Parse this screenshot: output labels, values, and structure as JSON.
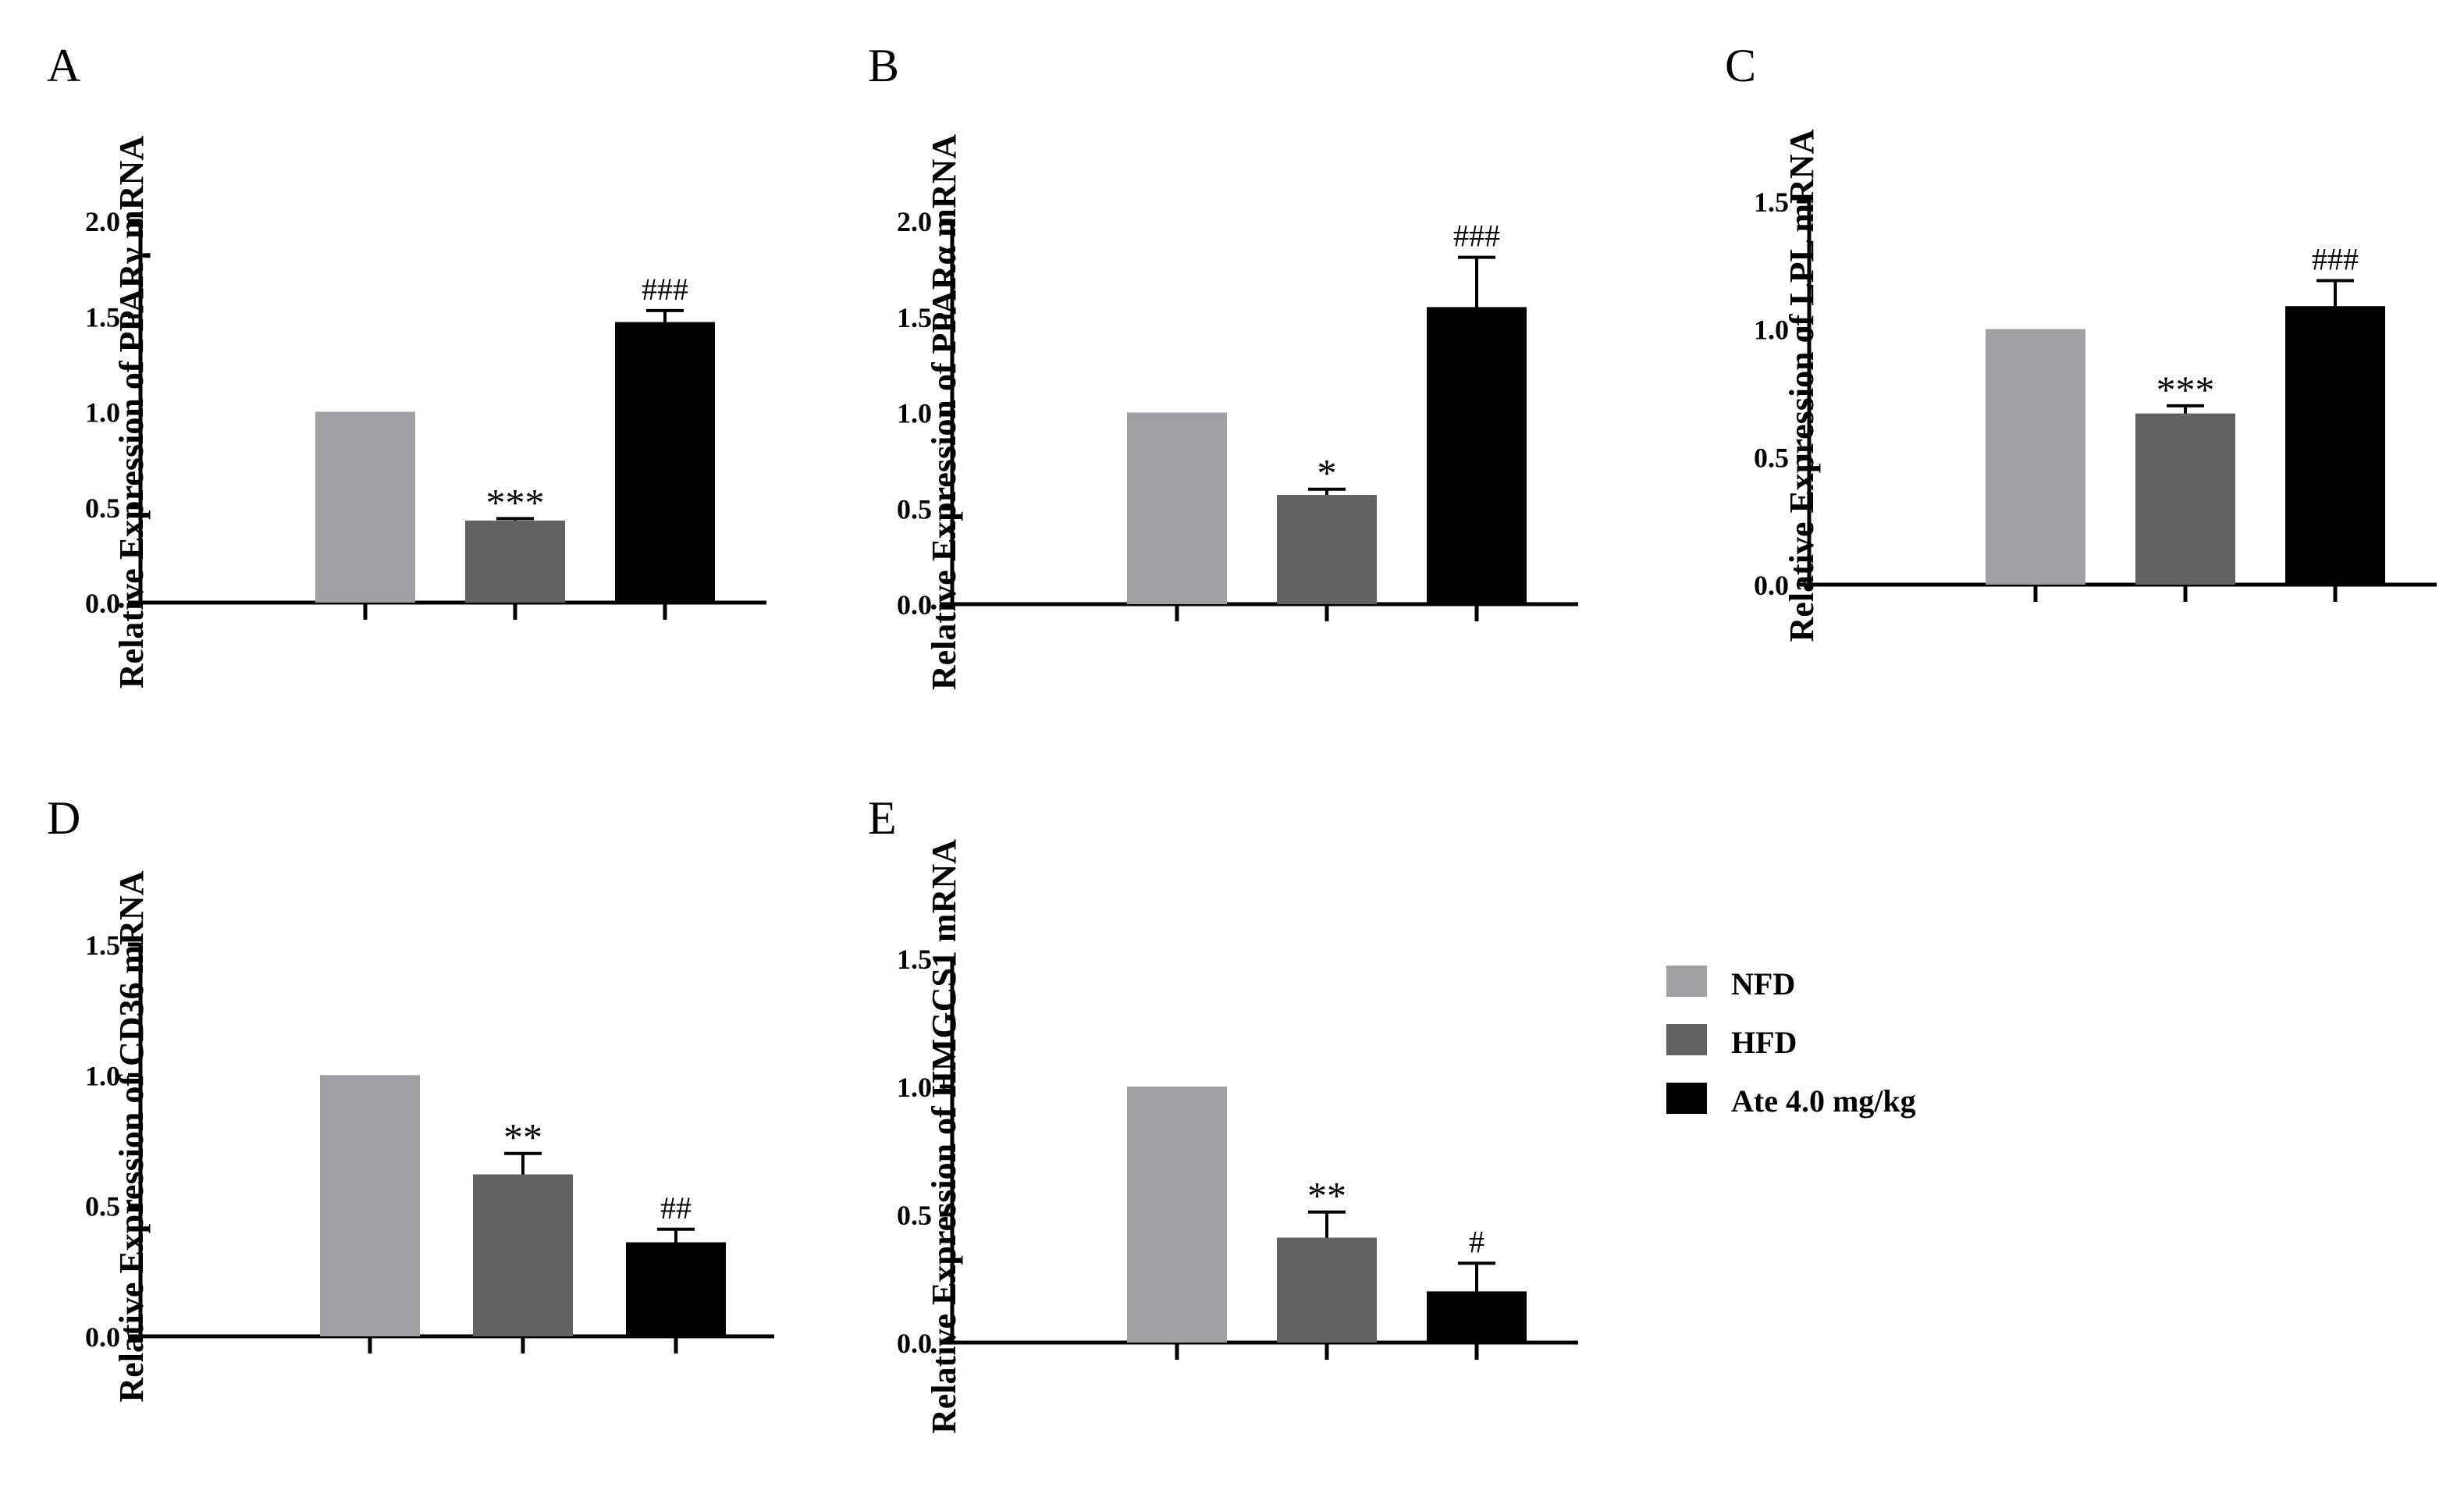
{
  "series_colors": {
    "NFD": "#a09fa3",
    "HFD": "#626262",
    "Ate 4.0 mg/kg": "#000000"
  },
  "legend": {
    "items": [
      "NFD",
      "HFD",
      "Ate 4.0 mg/kg"
    ]
  },
  "chart_data": [
    {
      "panel": "A",
      "type": "bar",
      "ylabel": "Relative Expression of PPARγ mRNA",
      "categories": [
        "NFD",
        "HFD",
        "Ate 4.0 mg/kg"
      ],
      "values": [
        1.0,
        0.43,
        1.47
      ],
      "errors": [
        0,
        0.01,
        0.06
      ],
      "annotations": [
        "",
        "***",
        "###"
      ],
      "ylim": [
        0,
        2.0
      ],
      "yticks": [
        "0.0",
        "0.5",
        "1.0",
        "1.5",
        "2.0"
      ]
    },
    {
      "panel": "B",
      "type": "bar",
      "ylabel": "Relative Expression of PPARα mRNA",
      "categories": [
        "NFD",
        "HFD",
        "Ate 4.0 mg/kg"
      ],
      "values": [
        1.0,
        0.57,
        1.55
      ],
      "errors": [
        0,
        0.03,
        0.26
      ],
      "annotations": [
        "",
        "*",
        "###"
      ],
      "ylim": [
        0,
        2.0
      ],
      "yticks": [
        "0.0",
        "0.5",
        "1.0",
        "1.5",
        "2.0"
      ]
    },
    {
      "panel": "C",
      "type": "bar",
      "ylabel": "Relative Expression of LPL mRNA",
      "categories": [
        "NFD",
        "HFD",
        "Ate 4.0 mg/kg"
      ],
      "values": [
        1.0,
        0.67,
        1.09
      ],
      "errors": [
        0,
        0.03,
        0.1
      ],
      "annotations": [
        "",
        "***",
        "###"
      ],
      "ylim": [
        0,
        1.5
      ],
      "yticks": [
        "0.0",
        "0.5",
        "1.0",
        "1.5"
      ]
    },
    {
      "panel": "D",
      "type": "bar",
      "ylabel": "Relative Expression of CD36 mRNA",
      "categories": [
        "NFD",
        "HFD",
        "Ate 4.0 mg/kg"
      ],
      "values": [
        1.0,
        0.62,
        0.36
      ],
      "errors": [
        0,
        0.08,
        0.05
      ],
      "annotations": [
        "",
        "**",
        "##"
      ],
      "ylim": [
        0,
        1.5
      ],
      "yticks": [
        "0.0",
        "0.5",
        "1.0",
        "1.5"
      ]
    },
    {
      "panel": "E",
      "type": "bar",
      "ylabel": "Relative Expression of HMGCS1 mRNA",
      "categories": [
        "NFD",
        "HFD",
        "Ate 4.0 mg/kg"
      ],
      "values": [
        1.0,
        0.41,
        0.2
      ],
      "errors": [
        0,
        0.1,
        0.11
      ],
      "annotations": [
        "",
        "**",
        "#"
      ],
      "ylim": [
        0,
        1.5
      ],
      "yticks": [
        "0.0",
        "0.5",
        "1.0",
        "1.5"
      ]
    }
  ]
}
